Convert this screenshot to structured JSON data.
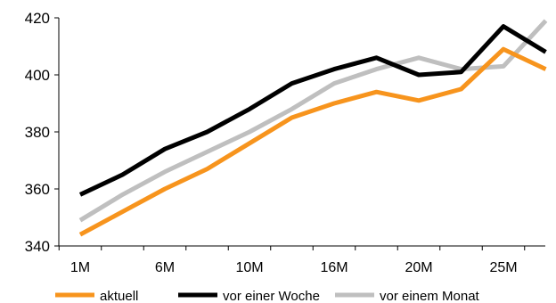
{
  "chart_data": {
    "type": "line",
    "categories": [
      "1M",
      "",
      "6M",
      "",
      "10M",
      "",
      "16M",
      "",
      "20M",
      "",
      "25M",
      ""
    ],
    "xtick_labels": [
      "1M",
      "6M",
      "10M",
      "16M",
      "20M",
      "25M"
    ],
    "ylim": [
      340,
      420
    ],
    "yticks": [
      340,
      360,
      380,
      400,
      420
    ],
    "grid": false,
    "legend_position": "bottom",
    "series": [
      {
        "name": "aktuell",
        "color": "#f7941d",
        "values": [
          344,
          352,
          360,
          367,
          376,
          385,
          390,
          394,
          391,
          395,
          409,
          402
        ]
      },
      {
        "name": "vor einer Woche",
        "color": "#000000",
        "values": [
          358,
          365,
          374,
          380,
          388,
          397,
          402,
          406,
          400,
          401,
          417,
          408
        ]
      },
      {
        "name": "vor einem Monat",
        "color": "#bfbfbf",
        "values": [
          349,
          358,
          366,
          373,
          380,
          388,
          397,
          402,
          406,
          402,
          403,
          419
        ]
      }
    ]
  }
}
